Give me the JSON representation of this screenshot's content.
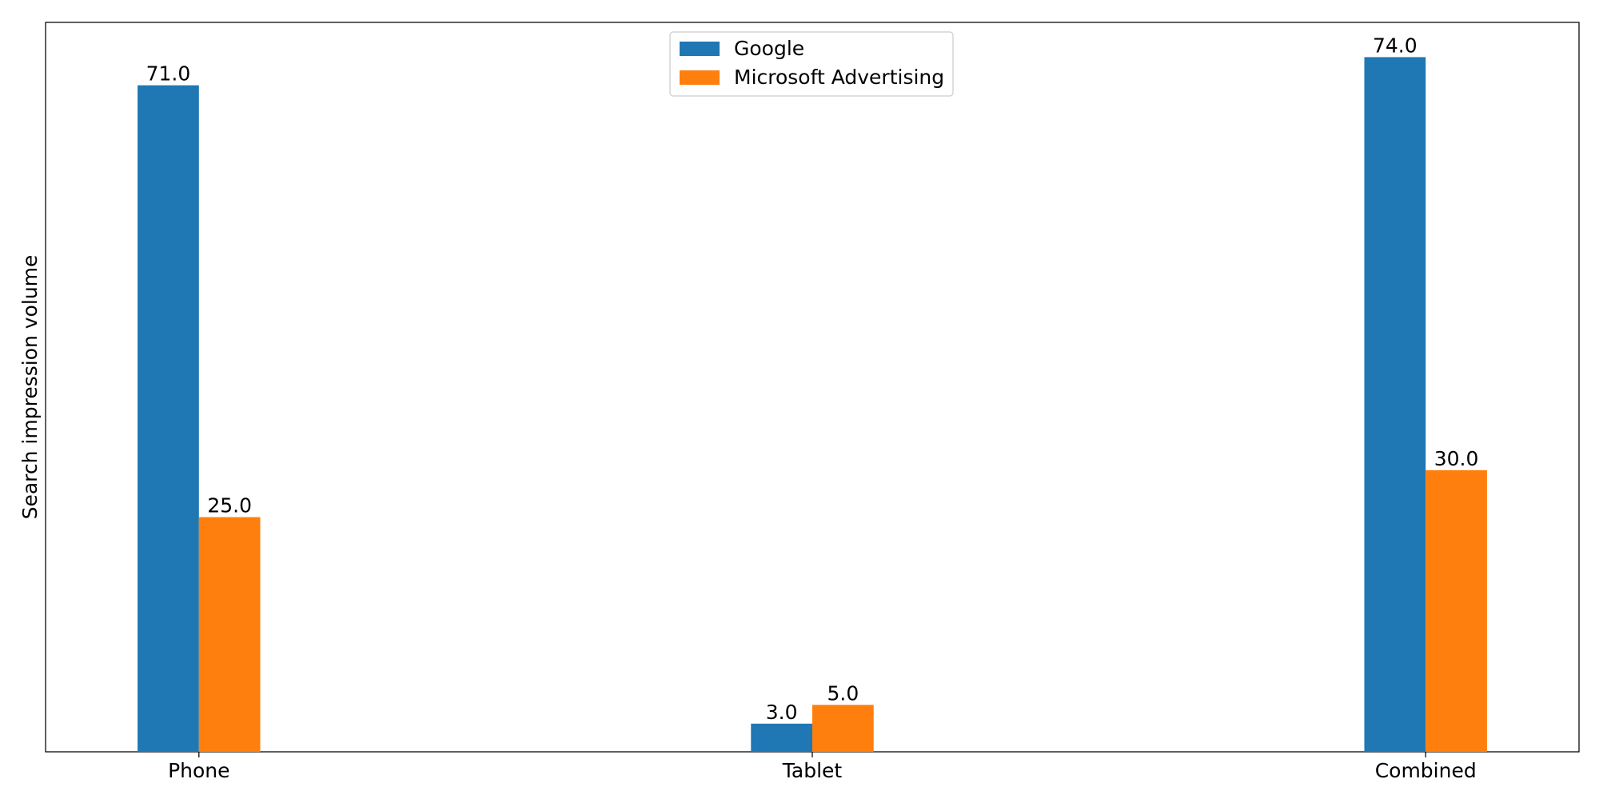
{
  "chart_data": {
    "type": "bar",
    "title": "",
    "xlabel": "",
    "ylabel": "Search impression volume",
    "categories": [
      "Phone",
      "Tablet",
      "Combined"
    ],
    "series": [
      {
        "name": "Google",
        "values": [
          71.0,
          3.0,
          74.0
        ],
        "labels": [
          "71.0",
          "3.0",
          "74.0"
        ]
      },
      {
        "name": "Microsoft Advertising",
        "values": [
          25.0,
          5.0,
          30.0
        ],
        "labels": [
          "25.0",
          "5.0",
          "30.0"
        ]
      }
    ],
    "ylim": [
      0,
      77.7
    ],
    "y_ticks_shown": false,
    "grid": false,
    "legend_position": "top-center",
    "colors": [
      "#1f77b4",
      "#ff7f0e"
    ]
  }
}
